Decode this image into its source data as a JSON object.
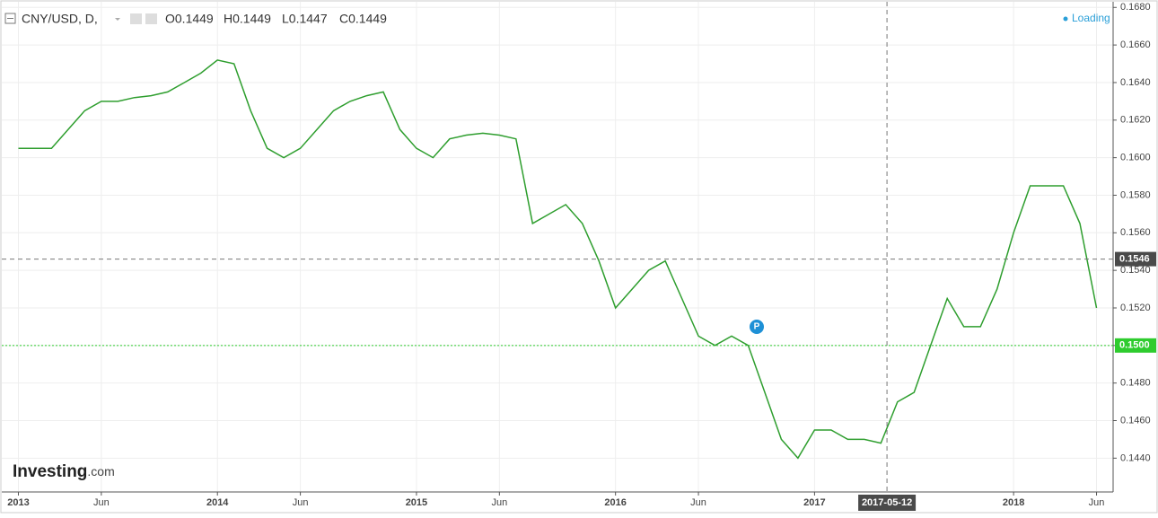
{
  "chart_data": {
    "type": "line",
    "symbol": "CNY/USD, D,",
    "ohlc": [
      "O0.1449",
      "H0.1449",
      "L0.1447",
      "C0.1449"
    ],
    "status": "Loading",
    "marker_label": "P",
    "logo": {
      "name": "Investing",
      "suffix": ".com"
    },
    "x": [
      "2013-01",
      "2013-02",
      "2013-03",
      "2013-04",
      "2013-05",
      "2013-06",
      "2013-07",
      "2013-08",
      "2013-09",
      "2013-10",
      "2013-11",
      "2013-12",
      "2014-01",
      "2014-02",
      "2014-03",
      "2014-04",
      "2014-05",
      "2014-06",
      "2014-07",
      "2014-08",
      "2014-09",
      "2014-10",
      "2014-11",
      "2014-12",
      "2015-01",
      "2015-02",
      "2015-03",
      "2015-04",
      "2015-05",
      "2015-06",
      "2015-07",
      "2015-08",
      "2015-09",
      "2015-10",
      "2015-11",
      "2015-12",
      "2016-01",
      "2016-02",
      "2016-03",
      "2016-04",
      "2016-05",
      "2016-06",
      "2016-07",
      "2016-08",
      "2016-09",
      "2016-10",
      "2016-11",
      "2016-12",
      "2017-01",
      "2017-02",
      "2017-03",
      "2017-04",
      "2017-05",
      "2017-06",
      "2017-07",
      "2017-08",
      "2017-09",
      "2017-10",
      "2017-11",
      "2017-12",
      "2018-01",
      "2018-02",
      "2018-03",
      "2018-04",
      "2018-05",
      "2018-06"
    ],
    "series": [
      {
        "name": "CNY/USD",
        "color": "#2e9e2e",
        "values": [
          0.1605,
          0.1605,
          0.1605,
          0.1615,
          0.1625,
          0.163,
          0.163,
          0.1632,
          0.1633,
          0.1635,
          0.164,
          0.1645,
          0.1652,
          0.165,
          0.1625,
          0.1605,
          0.16,
          0.1605,
          0.1615,
          0.1625,
          0.163,
          0.1633,
          0.1635,
          0.1615,
          0.1605,
          0.16,
          0.161,
          0.1612,
          0.1613,
          0.1612,
          0.161,
          0.1565,
          0.157,
          0.1575,
          0.1565,
          0.1545,
          0.152,
          0.153,
          0.154,
          0.1545,
          0.1525,
          0.1505,
          0.15,
          0.1505,
          0.15,
          0.1475,
          0.145,
          0.144,
          0.1455,
          0.1455,
          0.145,
          0.145,
          0.1448,
          0.147,
          0.1475,
          0.15,
          0.1525,
          0.151,
          0.151,
          0.153,
          0.156,
          0.1585,
          0.1585,
          0.1585,
          0.1565,
          0.152
        ]
      }
    ],
    "xlim": [
      "2012-12",
      "2018-07"
    ],
    "xticks": [
      {
        "value": "2013-01",
        "label": "2013"
      },
      {
        "value": "2013-06",
        "label": "Jun"
      },
      {
        "value": "2014-01",
        "label": "2014"
      },
      {
        "value": "2014-06",
        "label": "Jun"
      },
      {
        "value": "2015-01",
        "label": "2015"
      },
      {
        "value": "2015-06",
        "label": "Jun"
      },
      {
        "value": "2016-01",
        "label": "2016"
      },
      {
        "value": "2016-06",
        "label": "Jun"
      },
      {
        "value": "2017-01",
        "label": "2017"
      },
      {
        "value": "2018-01",
        "label": "2018"
      },
      {
        "value": "2018-06",
        "label": "Jun"
      }
    ],
    "ylim": [
      0.1422,
      0.1683
    ],
    "yticks": [
      {
        "value": 0.144,
        "label": "0.1440"
      },
      {
        "value": 0.146,
        "label": "0.1460"
      },
      {
        "value": 0.148,
        "label": "0.1480"
      },
      {
        "value": 0.15,
        "label": "0.1500"
      },
      {
        "value": 0.152,
        "label": "0.1520"
      },
      {
        "value": 0.154,
        "label": "0.1540"
      },
      {
        "value": 0.156,
        "label": "0.1560"
      },
      {
        "value": 0.158,
        "label": "0.1580"
      },
      {
        "value": 0.16,
        "label": "0.1600"
      },
      {
        "value": 0.162,
        "label": "0.1620"
      },
      {
        "value": 0.164,
        "label": "0.1640"
      },
      {
        "value": 0.166,
        "label": "0.1660"
      },
      {
        "value": 0.168,
        "label": "0.1680"
      }
    ],
    "grid": true,
    "current_price": {
      "value": 0.15,
      "label": "0.1500",
      "color": "#2ecc2e"
    },
    "crosshair": {
      "price": {
        "value": 0.1546,
        "label": "0.1546"
      },
      "date": "2017-05-12"
    }
  }
}
